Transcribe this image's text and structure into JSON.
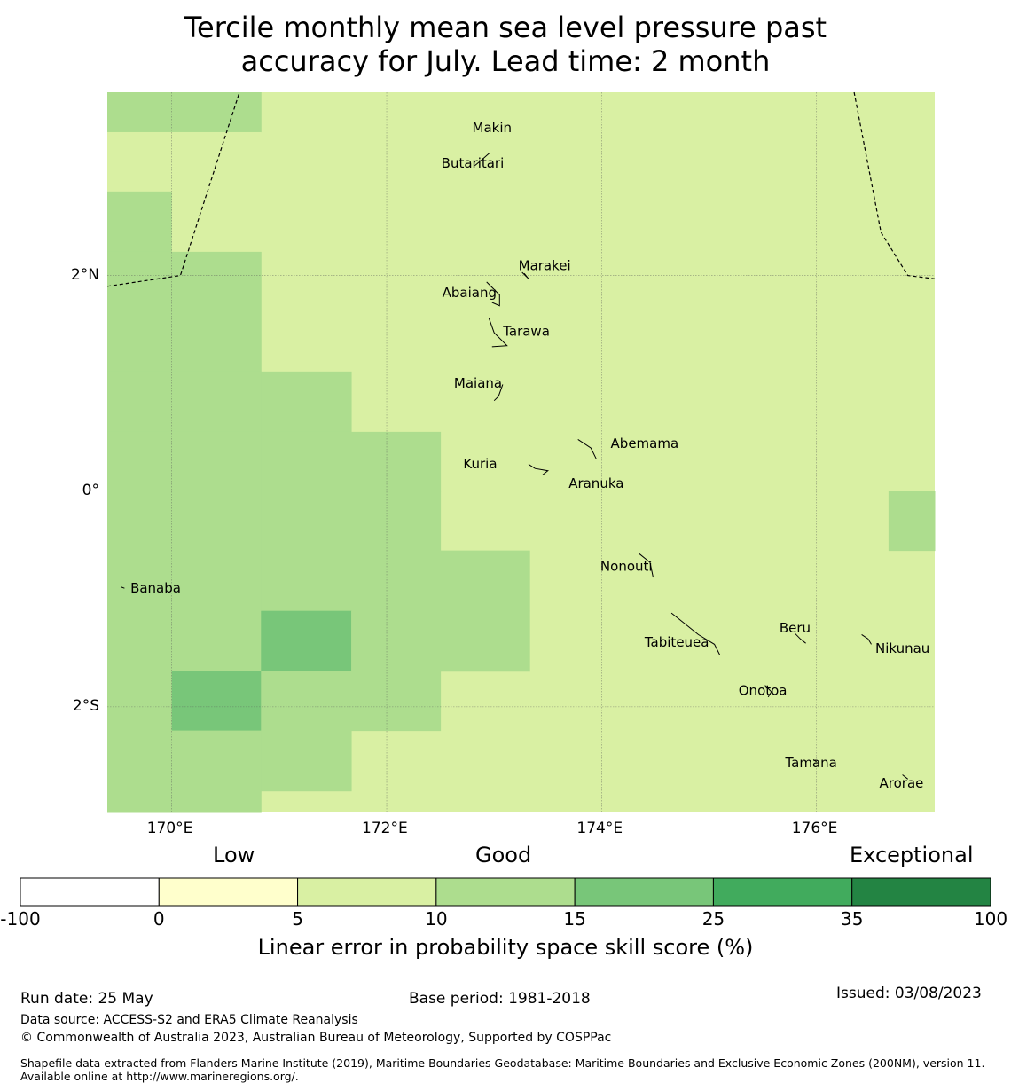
{
  "title_line1": "Tercile monthly mean sea level pressure past",
  "title_line2": "accuracy for July. Lead time: 2 month",
  "map": {
    "lon_range": [
      169.4,
      177.1
    ],
    "lat_range": [
      -2.98,
      3.7
    ],
    "lon_ticks": [
      {
        "value": 170,
        "label": "170°E"
      },
      {
        "value": 172,
        "label": "172°E"
      },
      {
        "value": 174,
        "label": "174°E"
      },
      {
        "value": 176,
        "label": "176°E"
      }
    ],
    "lat_ticks": [
      {
        "value": 2,
        "label": "2°N"
      },
      {
        "value": 0,
        "label": "0°"
      },
      {
        "value": -2,
        "label": "2°S"
      }
    ],
    "cells_legend": "each cell [lon0, lon1, lat0, lat1, skill class]",
    "cells": [
      [
        169.4,
        170.0,
        3.33,
        3.7,
        3
      ],
      [
        170.0,
        170.83,
        3.33,
        3.7,
        3
      ],
      [
        169.4,
        170.0,
        2.78,
        3.33,
        2
      ],
      [
        170.0,
        170.83,
        2.78,
        3.33,
        2
      ],
      [
        169.4,
        170.0,
        2.22,
        2.78,
        3
      ],
      [
        170.0,
        170.83,
        2.22,
        2.78,
        2
      ],
      [
        169.4,
        170.0,
        1.11,
        2.22,
        3
      ],
      [
        170.0,
        170.83,
        1.11,
        2.22,
        3
      ],
      [
        169.4,
        170.0,
        0.55,
        1.11,
        3
      ],
      [
        170.0,
        170.83,
        0.55,
        1.11,
        3
      ],
      [
        170.83,
        171.67,
        0.55,
        1.11,
        3
      ],
      [
        169.4,
        170.0,
        0.0,
        0.55,
        3
      ],
      [
        170.0,
        170.83,
        0.0,
        0.55,
        3
      ],
      [
        170.83,
        171.67,
        0.0,
        0.55,
        3
      ],
      [
        171.67,
        172.5,
        0.0,
        0.55,
        3
      ],
      [
        169.4,
        170.0,
        -0.55,
        0.0,
        3
      ],
      [
        170.0,
        170.83,
        -0.55,
        0.0,
        3
      ],
      [
        170.83,
        171.67,
        -0.55,
        0.0,
        3
      ],
      [
        171.67,
        172.5,
        -0.55,
        0.0,
        3
      ],
      [
        176.67,
        177.1,
        -0.55,
        0.0,
        3
      ],
      [
        169.4,
        170.0,
        -1.11,
        -0.55,
        3
      ],
      [
        170.0,
        170.83,
        -1.11,
        -0.55,
        3
      ],
      [
        170.83,
        171.67,
        -1.11,
        -0.55,
        3
      ],
      [
        171.67,
        172.5,
        -1.11,
        -0.55,
        3
      ],
      [
        172.5,
        173.33,
        -1.11,
        -0.55,
        3
      ],
      [
        169.4,
        170.0,
        -1.67,
        -1.11,
        3
      ],
      [
        170.0,
        170.83,
        -1.67,
        -1.11,
        3
      ],
      [
        170.83,
        171.67,
        -1.67,
        -1.11,
        4
      ],
      [
        171.67,
        172.5,
        -1.67,
        -1.11,
        3
      ],
      [
        172.5,
        173.33,
        -1.67,
        -1.11,
        3
      ],
      [
        169.4,
        170.0,
        -2.22,
        -1.67,
        3
      ],
      [
        170.0,
        170.83,
        -2.22,
        -1.67,
        4
      ],
      [
        170.83,
        171.67,
        -2.22,
        -1.67,
        3
      ],
      [
        171.67,
        172.5,
        -2.22,
        -1.67,
        3
      ],
      [
        169.4,
        170.0,
        -2.78,
        -2.22,
        3
      ],
      [
        170.0,
        170.83,
        -2.78,
        -2.22,
        3
      ],
      [
        170.83,
        171.67,
        -2.78,
        -2.22,
        3
      ],
      [
        169.4,
        170.0,
        -2.98,
        -2.78,
        3
      ],
      [
        170.0,
        170.83,
        -2.98,
        -2.78,
        3
      ]
    ],
    "default_class": 2,
    "islands": [
      {
        "name": "Makin",
        "lon": 172.98,
        "lat": 3.33
      },
      {
        "name": "Butaritari",
        "lon": 172.8,
        "lat": 3.0
      },
      {
        "name": "Marakei",
        "lon": 173.47,
        "lat": 2.05
      },
      {
        "name": "Abaiang",
        "lon": 172.77,
        "lat": 1.8
      },
      {
        "name": "Tarawa",
        "lon": 173.3,
        "lat": 1.44
      },
      {
        "name": "Maiana",
        "lon": 172.85,
        "lat": 0.96
      },
      {
        "name": "Abemama",
        "lon": 174.4,
        "lat": 0.4
      },
      {
        "name": "Kuria",
        "lon": 172.87,
        "lat": 0.21
      },
      {
        "name": "Aranuka",
        "lon": 173.95,
        "lat": 0.03
      },
      {
        "name": "Banaba",
        "lon": 169.85,
        "lat": -0.94
      },
      {
        "name": "Nonouti",
        "lon": 174.23,
        "lat": -0.74
      },
      {
        "name": "Beru",
        "lon": 175.8,
        "lat": -1.31
      },
      {
        "name": "Tabiteuea",
        "lon": 174.7,
        "lat": -1.44
      },
      {
        "name": "Nikunau",
        "lon": 176.8,
        "lat": -1.5
      },
      {
        "name": "Onotoa",
        "lon": 175.5,
        "lat": -1.89
      },
      {
        "name": "Tamana",
        "lon": 175.95,
        "lat": -2.56
      },
      {
        "name": "Arorae",
        "lon": 176.79,
        "lat": -2.75
      }
    ],
    "eez_boundary_west": [
      [
        169.4,
        1.9
      ],
      [
        170.08,
        2.0
      ],
      [
        170.63,
        3.7
      ]
    ],
    "eez_boundary_east": [
      [
        176.35,
        3.7
      ],
      [
        176.6,
        2.4
      ],
      [
        176.85,
        2.0
      ],
      [
        177.1,
        1.97
      ]
    ]
  },
  "colorbar": {
    "head_low": "Low",
    "head_good": "Good",
    "head_exceptional": "Exceptional",
    "tick_labels": [
      "-100",
      "0",
      "5",
      "10",
      "15",
      "25",
      "35",
      "100"
    ],
    "colors": [
      "#ffffff",
      "#ffffcc",
      "#d9f0a3",
      "#addd8e",
      "#78c679",
      "#41ab5d",
      "#238443"
    ],
    "label": "Linear error in probability space skill score (%)"
  },
  "footer": {
    "run_date": "Run date: 25 May",
    "base_period": "Base period: 1981-2018",
    "issued": "Issued: 03/08/2023",
    "data_source": "Data source: ACCESS-S2 and ERA5 Climate Reanalysis",
    "copyright": "© Commonwealth of Australia 2023, Australian Bureau of Meteorology, Supported by COSPPac",
    "shapefile": "Shapefile data extracted from Flanders Marine Institute (2019), Maritime Boundaries Geodatabase: Maritime Boundaries and Exclusive Economic Zones (200NM), version 11. Available online at http://www.marineregions.org/."
  }
}
